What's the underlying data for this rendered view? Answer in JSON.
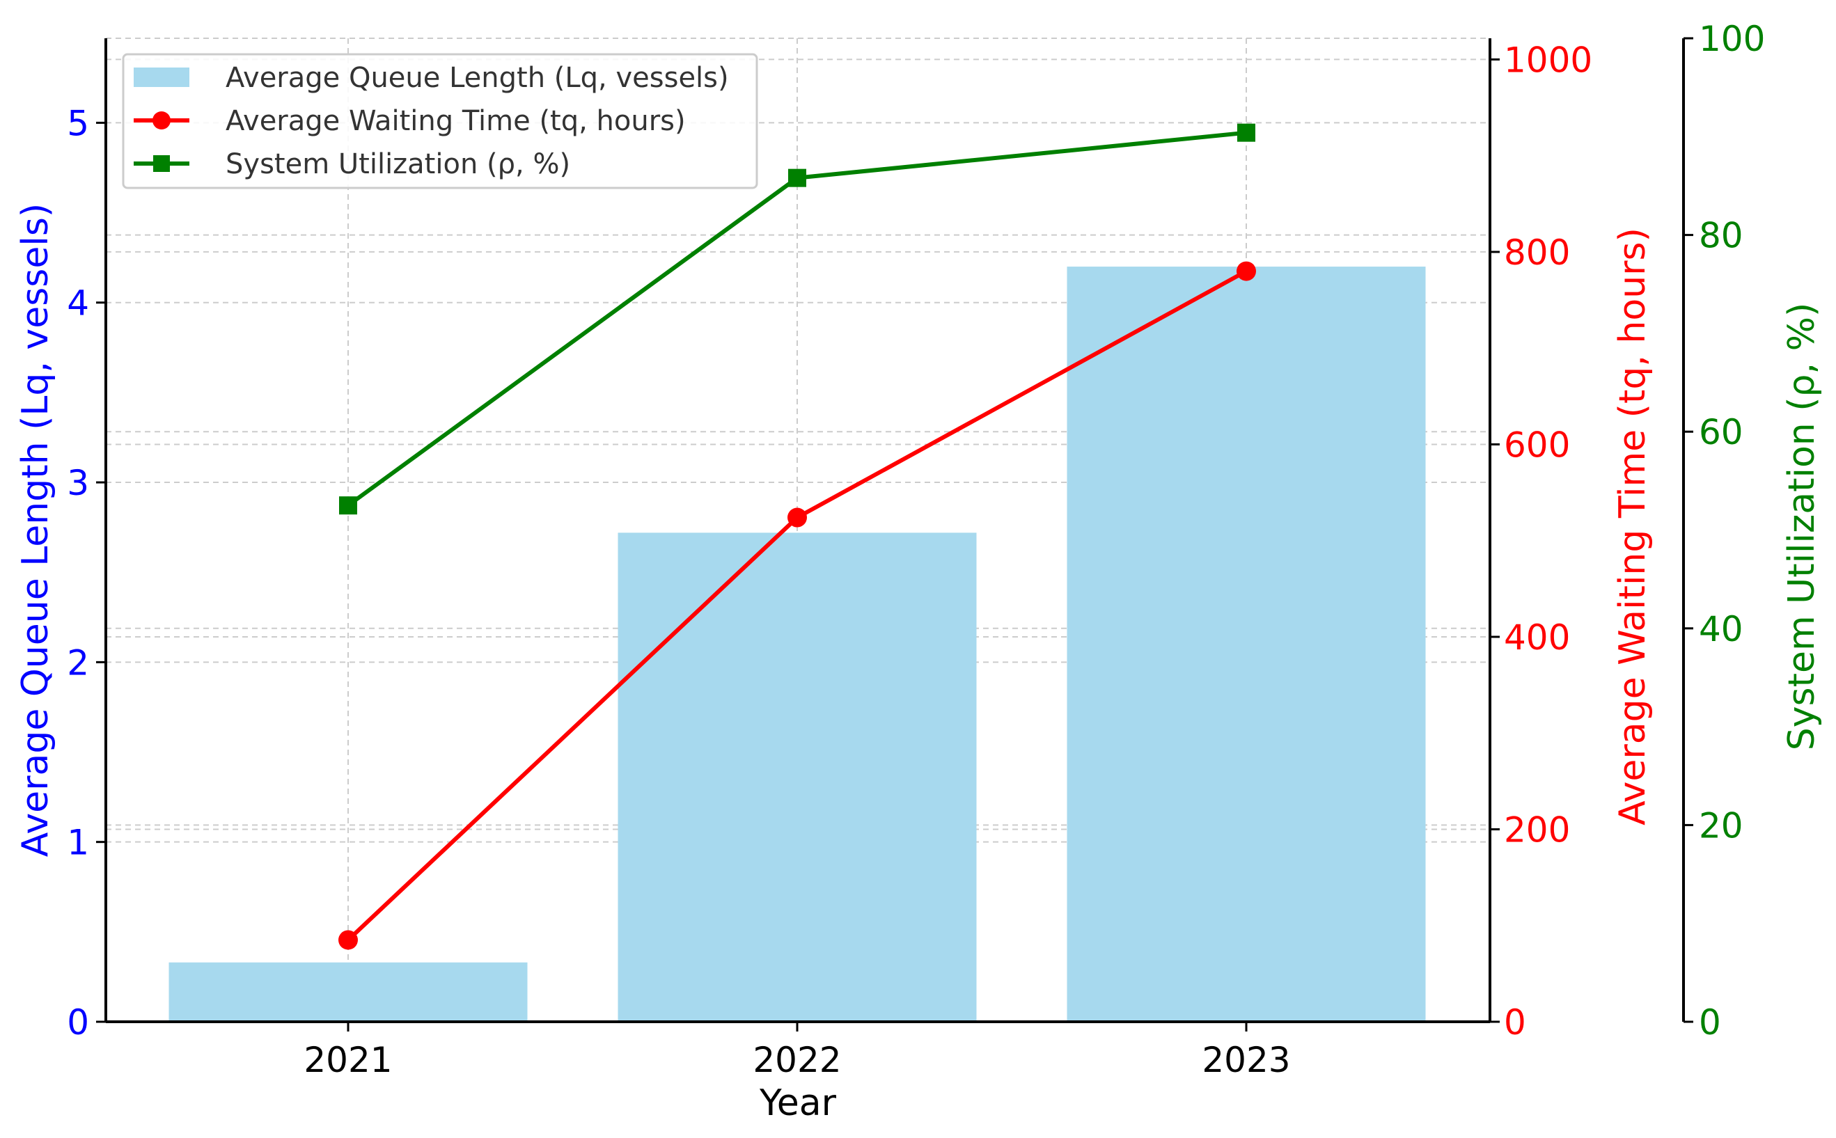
{
  "chart_data": {
    "type": "bar",
    "categories": [
      "2021",
      "2022",
      "2023"
    ],
    "xlabel": "Year",
    "series": [
      {
        "name": "Average Queue Length (Lq, vessels)",
        "kind": "bar",
        "axis": "left",
        "values": [
          0.33,
          2.72,
          4.2
        ],
        "color": "#a7d9ee"
      },
      {
        "name": "Average Waiting Time (tq, hours)",
        "kind": "line",
        "marker": "circle",
        "axis": "right1",
        "values": [
          85,
          524,
          780
        ],
        "color": "#ff0000"
      },
      {
        "name": "System Utilization (ρ, %)",
        "kind": "line",
        "marker": "square",
        "axis": "right2",
        "values": [
          52.5,
          85.8,
          90.4
        ],
        "color": "#008000"
      }
    ],
    "axes": {
      "left": {
        "label": "Average Queue Length (Lq, vessels)",
        "range": [
          0,
          5.47
        ],
        "ticks": [
          0,
          1,
          2,
          3,
          4,
          5
        ],
        "color": "#0000ff"
      },
      "right1": {
        "label": "Average Waiting Time (tq, hours)",
        "range": [
          0,
          1022
        ],
        "ticks": [
          0,
          200,
          400,
          600,
          800,
          1000
        ],
        "color": "#ff0000"
      },
      "right2": {
        "label": "System Utilization (ρ, %)",
        "range": [
          0,
          100
        ],
        "ticks": [
          0,
          20,
          40,
          60,
          80,
          100
        ],
        "color": "#008000"
      }
    },
    "grid": true,
    "legend": "top-left"
  }
}
